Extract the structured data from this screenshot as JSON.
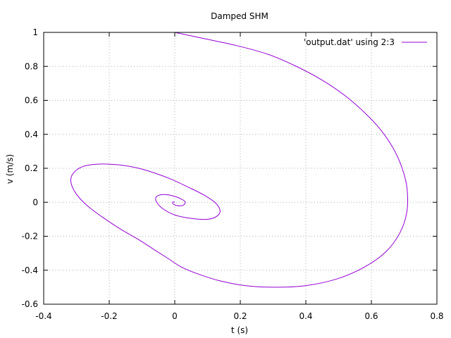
{
  "chart_data": {
    "type": "line",
    "title": "Damped SHM",
    "xlabel": "t (s)",
    "ylabel": "v (m/s)",
    "xlim": [
      -0.4,
      0.8
    ],
    "ylim": [
      -0.6,
      1.0
    ],
    "xticks": [
      -0.4,
      -0.2,
      0,
      0.2,
      0.4,
      0.6,
      0.8
    ],
    "yticks": [
      -0.6,
      -0.4,
      -0.2,
      0,
      0.2,
      0.4,
      0.6,
      0.8,
      1.0
    ],
    "xtick_labels": [
      "-0.4",
      "-0.2",
      "0",
      "0.2",
      "0.4",
      "0.6",
      "0.8"
    ],
    "ytick_labels": [
      "-0.6",
      "-0.4",
      "-0.2",
      "0",
      "0.2",
      "0.4",
      "0.6",
      "0.8",
      "1"
    ],
    "grid": true,
    "legend_position": "top-right",
    "series": [
      {
        "name": "'output.dat' using 2:3",
        "color": "#9400d3",
        "x": [
          0.0,
          0.098,
          0.194,
          0.286,
          0.371,
          0.449,
          0.518,
          0.578,
          0.627,
          0.666,
          0.694,
          0.709,
          0.708,
          0.687,
          0.645,
          0.58,
          0.497,
          0.402,
          0.305,
          0.213,
          0.133,
          0.068,
          0.019,
          -0.021,
          -0.062,
          -0.11,
          -0.164,
          -0.219,
          -0.267,
          -0.301,
          -0.317,
          -0.31,
          -0.281,
          -0.232,
          -0.17,
          -0.11,
          -0.058,
          -0.01,
          0.04,
          0.087,
          0.122,
          0.138,
          0.13,
          0.1,
          0.05,
          0.001,
          -0.035,
          -0.055,
          -0.057,
          -0.04,
          -0.01,
          0.021,
          0.032,
          0.025,
          0.008,
          -0.005,
          -0.006,
          0.0
        ],
        "y": [
          1.0,
          0.96,
          0.92,
          0.87,
          0.8,
          0.72,
          0.63,
          0.53,
          0.43,
          0.32,
          0.2,
          0.08,
          -0.06,
          -0.18,
          -0.29,
          -0.38,
          -0.45,
          -0.49,
          -0.5,
          -0.49,
          -0.46,
          -0.42,
          -0.38,
          -0.33,
          -0.28,
          -0.22,
          -0.16,
          -0.09,
          -0.02,
          0.05,
          0.12,
          0.17,
          0.21,
          0.225,
          0.22,
          0.2,
          0.17,
          0.135,
          0.09,
          0.045,
          0.0,
          -0.045,
          -0.08,
          -0.1,
          -0.095,
          -0.075,
          -0.04,
          0.0,
          0.03,
          0.045,
          0.04,
          0.018,
          0.0,
          -0.018,
          -0.02,
          -0.01,
          0.002,
          0.0
        ]
      }
    ]
  }
}
